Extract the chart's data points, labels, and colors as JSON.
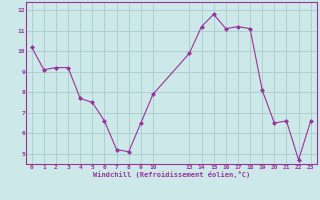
{
  "x": [
    0,
    1,
    2,
    3,
    4,
    5,
    6,
    7,
    8,
    9,
    10,
    13,
    14,
    15,
    16,
    17,
    18,
    19,
    20,
    21,
    22,
    23
  ],
  "y": [
    10.2,
    9.1,
    9.2,
    9.2,
    7.7,
    7.5,
    6.6,
    5.2,
    5.1,
    6.5,
    7.9,
    9.9,
    11.2,
    11.8,
    11.1,
    11.2,
    11.1,
    8.1,
    6.5,
    6.6,
    4.7,
    6.6
  ],
  "line_color": "#993399",
  "marker": "D",
  "marker_size": 2.0,
  "bg_color": "#cce8e8",
  "grid_color": "#aacccc",
  "tick_color": "#993399",
  "label_color": "#993399",
  "xlabel": "Windchill (Refroidissement éolien,°C)",
  "xticks": [
    0,
    1,
    2,
    3,
    4,
    5,
    6,
    7,
    8,
    9,
    10,
    13,
    14,
    15,
    16,
    17,
    18,
    19,
    20,
    21,
    22,
    23
  ],
  "yticks": [
    5,
    6,
    7,
    8,
    9,
    10,
    11,
    12
  ],
  "ylim": [
    4.5,
    12.4
  ],
  "xlim": [
    -0.5,
    23.5
  ]
}
